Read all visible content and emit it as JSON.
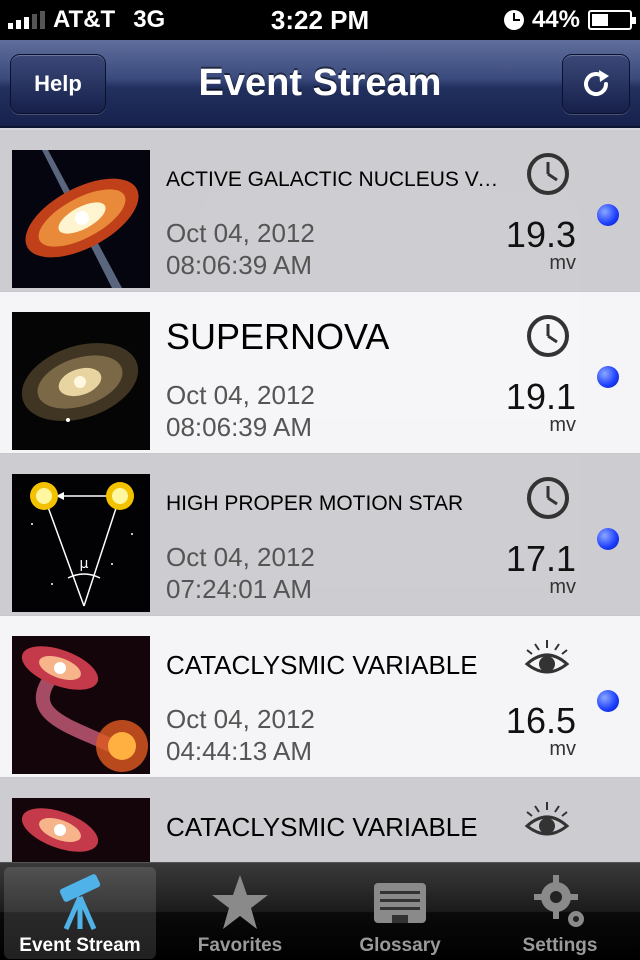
{
  "status_bar": {
    "carrier": "AT&T",
    "network": "3G",
    "time": "3:22 PM",
    "battery": "44%"
  },
  "nav": {
    "title": "Event Stream",
    "help_label": "Help",
    "refresh_icon": "refresh-icon"
  },
  "events": [
    {
      "title": "ACTIVE GALACTIC NUCLEUS VAR...",
      "date": "Oct 04, 2012",
      "time": "08:06:39 AM",
      "magnitude": "19.3",
      "unit": "mv",
      "status_icon": "clock-icon",
      "thumbnail": "accretion-disk-jet-image"
    },
    {
      "title": "SUPERNOVA",
      "date": "Oct 04, 2012",
      "time": "08:06:39 AM",
      "magnitude": "19.1",
      "unit": "mv",
      "status_icon": "clock-icon",
      "thumbnail": "spiral-galaxy-image"
    },
    {
      "title": "HIGH PROPER MOTION STAR",
      "date": "Oct 04, 2012",
      "time": "07:24:01 AM",
      "magnitude": "17.1",
      "unit": "mv",
      "status_icon": "clock-icon",
      "thumbnail": "proper-motion-diagram-image",
      "thumbnail_label": "μ"
    },
    {
      "title": "CATACLYSMIC VARIABLE",
      "date": "Oct 04, 2012",
      "time": "04:44:13 AM",
      "magnitude": "16.5",
      "unit": "mv",
      "status_icon": "eye-icon",
      "thumbnail": "binary-star-image"
    },
    {
      "title": "CATACLYSMIC VARIABLE",
      "date": "",
      "time": "",
      "magnitude": "",
      "unit": "",
      "status_icon": "eye-icon",
      "thumbnail": "binary-star-image"
    }
  ],
  "tabs": [
    {
      "label": "Event Stream",
      "icon": "telescope-icon",
      "active": true
    },
    {
      "label": "Favorites",
      "icon": "star-icon",
      "active": false
    },
    {
      "label": "Glossary",
      "icon": "glossary-icon",
      "active": false
    },
    {
      "label": "Settings",
      "icon": "gear-icon",
      "active": false
    }
  ],
  "colors": {
    "nav_dark": "#17224c",
    "nav_light": "#5f6e9c",
    "indicator_dot": "#1a3cff"
  }
}
